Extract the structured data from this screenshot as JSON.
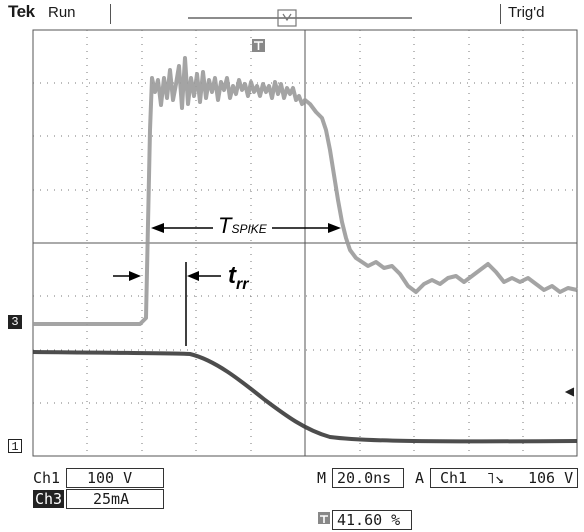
{
  "header": {
    "brand": "Tek",
    "run_state": "Run",
    "trigger_state": "Trig'd"
  },
  "annotations": {
    "spike_label_main": "T",
    "spike_label_sub": "SPIKE",
    "trr_label_main": "t",
    "trr_label_sub": "rr"
  },
  "channel_markers": {
    "ch3": "3",
    "ch1": "1",
    "trigger": "T"
  },
  "status": {
    "ch1_label": "Ch1",
    "ch1_scale": "100 V",
    "ch3_label": "Ch3",
    "ch3_scale": "25mA",
    "timebase_label": "M",
    "timebase_value": "20.0ns",
    "trigger_mode": "A",
    "trigger_source": "Ch1",
    "trigger_slope": "˥↘",
    "trigger_level": "106 V",
    "trigger_position": "41.60 %"
  },
  "colors": {
    "ch3_trace": "#9a9a9a",
    "ch1_trace": "#3a3a3a",
    "graticule": "#555555",
    "annotation": "#000000"
  }
}
